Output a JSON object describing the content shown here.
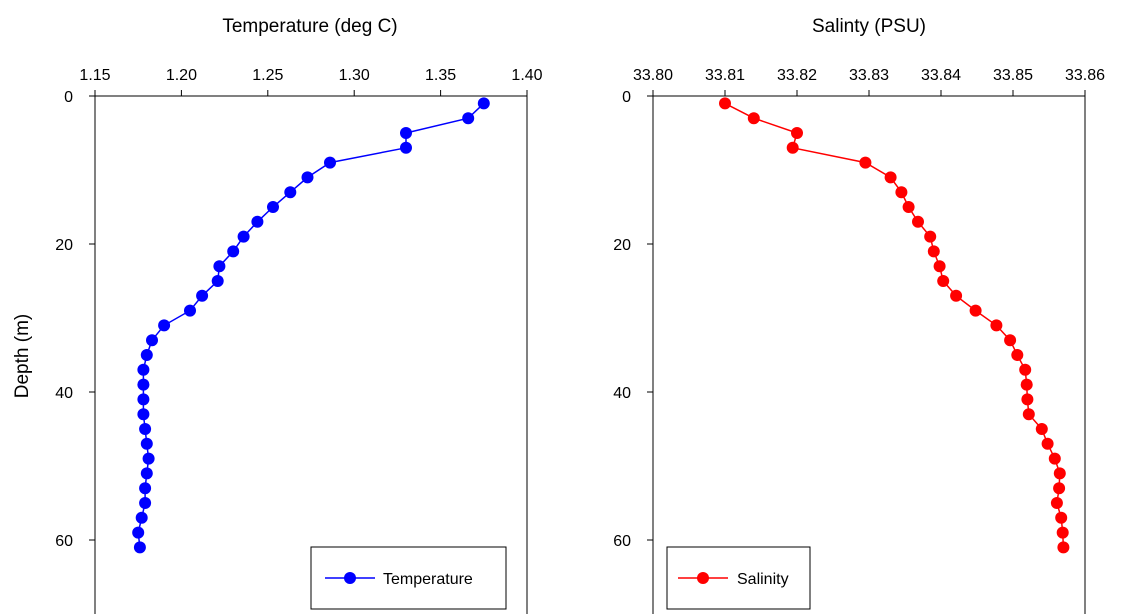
{
  "chart_data": [
    {
      "type": "line",
      "title": "Temperature (deg C)",
      "xlabel": "Temperature (deg C)",
      "ylabel": "Depth (m)",
      "xlim": [
        1.15,
        1.4
      ],
      "ylim": [
        0,
        70
      ],
      "x_ticks": [
        "1.15",
        "1.20",
        "1.25",
        "1.30",
        "1.35",
        "1.40"
      ],
      "y_ticks": [
        "0",
        "20",
        "40",
        "60"
      ],
      "y_inverted": true,
      "x_axis_position": "top",
      "legend_position": "bottom-right",
      "grid": false,
      "color": "#0000ff",
      "series": [
        {
          "name": "Temperature",
          "x": [
            1.375,
            1.366,
            1.33,
            1.33,
            1.286,
            1.273,
            1.263,
            1.253,
            1.244,
            1.236,
            1.23,
            1.222,
            1.221,
            1.212,
            1.205,
            1.19,
            1.183,
            1.18,
            1.178,
            1.178,
            1.178,
            1.178,
            1.179,
            1.18,
            1.181,
            1.18,
            1.179,
            1.179,
            1.177,
            1.175,
            1.176
          ],
          "y": [
            1,
            3,
            5,
            7,
            9,
            11,
            13,
            15,
            17,
            19,
            21,
            23,
            25,
            27,
            29,
            31,
            33,
            35,
            37,
            39,
            41,
            43,
            45,
            47,
            49,
            51,
            53,
            55,
            57,
            59,
            61
          ]
        }
      ]
    },
    {
      "type": "line",
      "title": "Salinty (PSU)",
      "xlabel": "Salinty (PSU)",
      "ylabel": "",
      "xlim": [
        33.8,
        33.86
      ],
      "ylim": [
        0,
        70
      ],
      "x_ticks": [
        "33.80",
        "33.81",
        "33.82",
        "33.83",
        "33.84",
        "33.85",
        "33.86"
      ],
      "y_ticks": [
        "0",
        "20",
        "40",
        "60"
      ],
      "y_inverted": true,
      "x_axis_position": "top",
      "legend_position": "bottom-left",
      "grid": false,
      "color": "#ff0000",
      "series": [
        {
          "name": "Salinity",
          "x": [
            33.81,
            33.814,
            33.82,
            33.8194,
            33.8295,
            33.833,
            33.8345,
            33.8355,
            33.8368,
            33.8385,
            33.839,
            33.8398,
            33.8403,
            33.8421,
            33.8448,
            33.8477,
            33.8496,
            33.8506,
            33.8517,
            33.8519,
            33.852,
            33.8522,
            33.854,
            33.8548,
            33.8558,
            33.8565,
            33.8564,
            33.8561,
            33.8567,
            33.8569,
            33.857
          ],
          "y": [
            1,
            3,
            5,
            7,
            9,
            11,
            13,
            15,
            17,
            19,
            21,
            23,
            25,
            27,
            29,
            31,
            33,
            35,
            37,
            39,
            41,
            43,
            45,
            47,
            49,
            51,
            53,
            55,
            57,
            59,
            61
          ]
        }
      ]
    }
  ]
}
